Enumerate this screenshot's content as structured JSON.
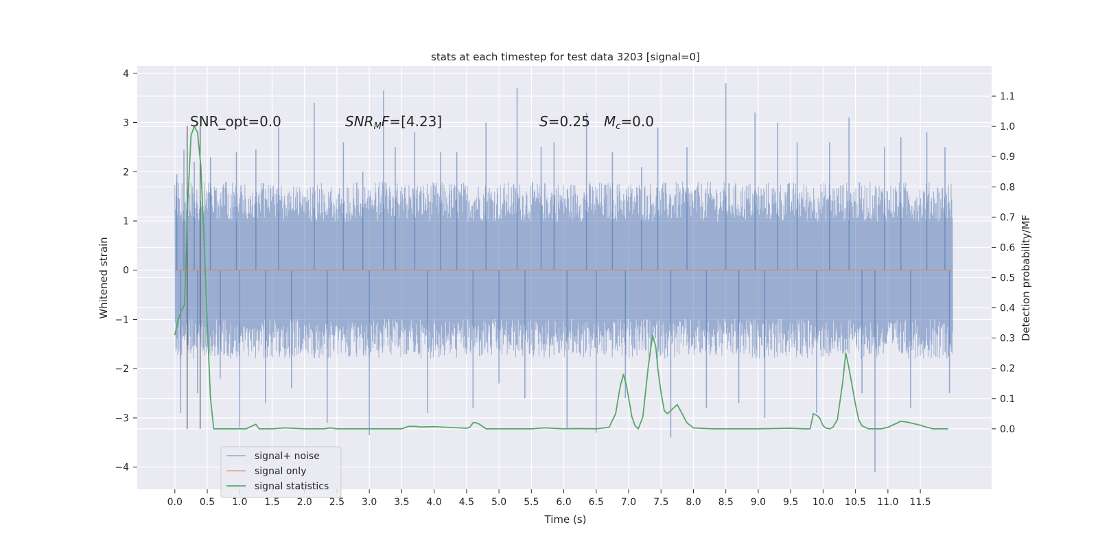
{
  "chart_data": {
    "type": "line",
    "title": "stats at each timestep for test data 3203 [signal=0]",
    "xlabel": "Time (s)",
    "ylabel_left": "Whitened strain",
    "ylabel_right": "Detection probability/MF",
    "xlim": [
      -0.58,
      12.6
    ],
    "ylim_left": [
      -4.45,
      4.15
    ],
    "ylim_right": [
      -0.2,
      1.2
    ],
    "x_ticks": [
      "0.0",
      "0.5",
      "1.0",
      "1.5",
      "2.0",
      "2.5",
      "3.0",
      "3.5",
      "4.0",
      "4.5",
      "5.0",
      "5.5",
      "6.0",
      "6.5",
      "7.0",
      "7.5",
      "8.0",
      "8.5",
      "9.0",
      "9.5",
      "10.0",
      "10.5",
      "11.0",
      "11.5"
    ],
    "y_ticks_left": [
      "−4",
      "−3",
      "−2",
      "−1",
      "0",
      "1",
      "2",
      "3",
      "4"
    ],
    "y_ticks_right": [
      "0.0",
      "0.1",
      "0.2",
      "0.3",
      "0.4",
      "0.5",
      "0.6",
      "0.7",
      "0.8",
      "0.9",
      "1.0",
      "1.1"
    ],
    "grid": true,
    "legend_position": "lower-left",
    "annotations": {
      "snr_opt": "SNR_opt=0.0",
      "snr_mf": "[4.23]",
      "s_value": "=0.25",
      "mc_value": "=0.0"
    },
    "vertical_markers_x": [
      0.19,
      0.39
    ],
    "noise_band": {
      "x_start": 0.0,
      "x_end": 12.0,
      "typical_range": [
        -1.8,
        1.8
      ],
      "extreme_range": [
        -4.1,
        3.8
      ]
    },
    "series": [
      {
        "name": "signal+ noise",
        "color": "#4c72b0",
        "axis": "left",
        "spikes": [
          {
            "x": 0.03,
            "y": 1.95
          },
          {
            "x": 0.09,
            "y": -2.9
          },
          {
            "x": 0.14,
            "y": 2.45
          },
          {
            "x": 0.3,
            "y": 2.2
          },
          {
            "x": 0.35,
            "y": -2.5
          },
          {
            "x": 0.55,
            "y": 2.3
          },
          {
            "x": 0.7,
            "y": -2.2
          },
          {
            "x": 0.95,
            "y": 2.4
          },
          {
            "x": 1.0,
            "y": -3.2
          },
          {
            "x": 1.25,
            "y": 2.45
          },
          {
            "x": 1.4,
            "y": -2.7
          },
          {
            "x": 1.6,
            "y": 2.9
          },
          {
            "x": 1.8,
            "y": -2.4
          },
          {
            "x": 2.15,
            "y": 3.4
          },
          {
            "x": 2.35,
            "y": -3.1
          },
          {
            "x": 2.6,
            "y": 2.6
          },
          {
            "x": 2.9,
            "y": 2.0
          },
          {
            "x": 3.0,
            "y": -3.35
          },
          {
            "x": 3.22,
            "y": 3.65
          },
          {
            "x": 3.4,
            "y": 2.5
          },
          {
            "x": 3.7,
            "y": 2.8
          },
          {
            "x": 3.9,
            "y": -2.9
          },
          {
            "x": 4.1,
            "y": 2.4
          },
          {
            "x": 4.35,
            "y": 2.4
          },
          {
            "x": 4.6,
            "y": -2.8
          },
          {
            "x": 4.8,
            "y": 3.0
          },
          {
            "x": 5.0,
            "y": -2.3
          },
          {
            "x": 5.28,
            "y": 3.7
          },
          {
            "x": 5.4,
            "y": -2.6
          },
          {
            "x": 5.65,
            "y": 2.5
          },
          {
            "x": 5.85,
            "y": 2.6
          },
          {
            "x": 6.05,
            "y": -3.2
          },
          {
            "x": 6.35,
            "y": 3.2
          },
          {
            "x": 6.5,
            "y": -3.3
          },
          {
            "x": 6.75,
            "y": 2.4
          },
          {
            "x": 6.95,
            "y": -2.6
          },
          {
            "x": 7.2,
            "y": 2.1
          },
          {
            "x": 7.45,
            "y": 2.9
          },
          {
            "x": 7.65,
            "y": -3.4
          },
          {
            "x": 7.9,
            "y": 2.5
          },
          {
            "x": 8.2,
            "y": -2.8
          },
          {
            "x": 8.5,
            "y": 3.8
          },
          {
            "x": 8.7,
            "y": -2.7
          },
          {
            "x": 8.95,
            "y": 3.2
          },
          {
            "x": 9.1,
            "y": -3.0
          },
          {
            "x": 9.3,
            "y": 3.0
          },
          {
            "x": 9.6,
            "y": 2.6
          },
          {
            "x": 9.9,
            "y": -2.9
          },
          {
            "x": 10.1,
            "y": 2.6
          },
          {
            "x": 10.4,
            "y": 3.1
          },
          {
            "x": 10.6,
            "y": -2.5
          },
          {
            "x": 10.8,
            "y": -4.1
          },
          {
            "x": 10.95,
            "y": 2.5
          },
          {
            "x": 11.2,
            "y": 2.7
          },
          {
            "x": 11.35,
            "y": -2.8
          },
          {
            "x": 11.6,
            "y": 2.8
          },
          {
            "x": 11.88,
            "y": 2.5
          },
          {
            "x": 11.95,
            "y": -2.5
          }
        ]
      },
      {
        "name": "signal only",
        "color": "#dd8452",
        "axis": "left",
        "x": [
          0.0,
          12.0
        ],
        "y": [
          0.0,
          0.0
        ]
      },
      {
        "name": "signal statistics",
        "color": "#55a868",
        "axis": "right",
        "x": [
          0.0,
          0.05,
          0.1,
          0.15,
          0.2,
          0.25,
          0.3,
          0.35,
          0.4,
          0.45,
          0.5,
          0.55,
          0.6,
          0.65,
          0.7,
          0.8,
          0.9,
          1.0,
          1.1,
          1.2,
          1.25,
          1.3,
          1.5,
          1.7,
          2.0,
          2.3,
          2.4,
          2.5,
          3.0,
          3.5,
          3.6,
          3.7,
          3.8,
          4.0,
          4.3,
          4.5,
          4.55,
          4.6,
          4.65,
          4.7,
          4.8,
          5.0,
          5.5,
          5.7,
          6.0,
          6.2,
          6.5,
          6.7,
          6.8,
          6.87,
          6.92,
          6.97,
          7.05,
          7.1,
          7.15,
          7.22,
          7.3,
          7.37,
          7.42,
          7.45,
          7.5,
          7.55,
          7.6,
          7.7,
          7.75,
          7.8,
          7.9,
          8.0,
          8.3,
          8.5,
          9.0,
          9.5,
          9.7,
          9.8,
          9.85,
          9.9,
          9.95,
          10.0,
          10.05,
          10.1,
          10.15,
          10.22,
          10.3,
          10.35,
          10.4,
          10.5,
          10.55,
          10.6,
          10.7,
          10.8,
          10.9,
          11.0,
          11.1,
          11.2,
          11.3,
          11.5,
          11.6,
          11.7,
          11.93
        ],
        "y": [
          0.31,
          0.36,
          0.39,
          0.41,
          0.75,
          0.97,
          1.0,
          0.98,
          0.87,
          0.63,
          0.35,
          0.1,
          0.0,
          0.0,
          0.0,
          0.0,
          0.0,
          0.0,
          0.0,
          0.01,
          0.015,
          0.0,
          0.0,
          0.003,
          0.0,
          0.0,
          0.003,
          0.0,
          0.0,
          0.0,
          0.008,
          0.008,
          0.006,
          0.007,
          0.004,
          0.002,
          0.005,
          0.02,
          0.02,
          0.015,
          0.0,
          0.0,
          0.0,
          0.003,
          0.0,
          0.001,
          0.0,
          0.005,
          0.05,
          0.14,
          0.18,
          0.14,
          0.04,
          0.01,
          0.0,
          0.04,
          0.2,
          0.31,
          0.27,
          0.2,
          0.12,
          0.06,
          0.05,
          0.07,
          0.08,
          0.06,
          0.02,
          0.003,
          0.0,
          0.0,
          0.0,
          0.002,
          0.0,
          0.0,
          0.05,
          0.045,
          0.035,
          0.01,
          0.002,
          0.0,
          0.005,
          0.03,
          0.15,
          0.25,
          0.2,
          0.08,
          0.03,
          0.01,
          0.0,
          0.0,
          0.0,
          0.005,
          0.015,
          0.025,
          0.022,
          0.012,
          0.005,
          0.0,
          0.0
        ]
      }
    ]
  }
}
